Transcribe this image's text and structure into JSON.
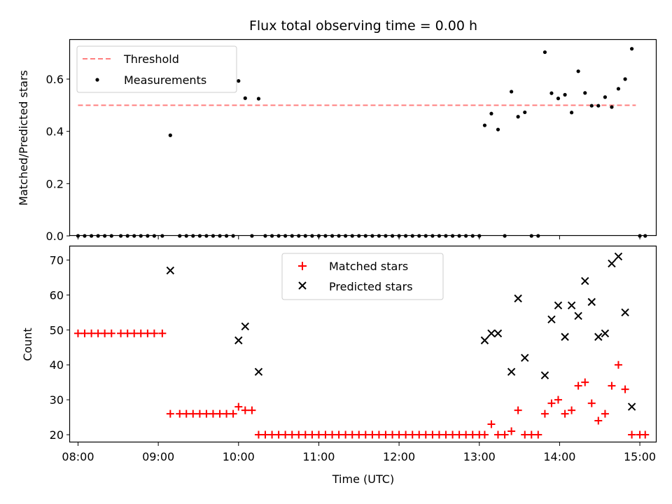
{
  "figure": {
    "title": "Flux total observing time = 0.00 h",
    "xlabel": "Time (UTC)"
  },
  "chart_data": [
    {
      "type": "scatter",
      "panel": "top",
      "ylabel": "Matched/Predicted stars",
      "xlim": [
        7.9,
        15.2
      ],
      "ylim": [
        0,
        0.75
      ],
      "yticks": [
        0.0,
        0.2,
        0.4,
        0.6
      ],
      "ytick_labels": [
        "0.0",
        "0.2",
        "0.4",
        "0.6"
      ],
      "legend": "upper-left",
      "threshold": {
        "name": "Threshold",
        "value": 0.5,
        "x_range": [
          8.0,
          14.95
        ],
        "color": "#ff7f7f",
        "style": "dashed"
      },
      "series": [
        {
          "name": "Measurements",
          "color": "#000000",
          "marker": "dot",
          "points": [
            [
              8.0,
              0
            ],
            [
              8.083,
              0
            ],
            [
              8.167,
              0
            ],
            [
              8.25,
              0
            ],
            [
              8.333,
              0
            ],
            [
              8.417,
              0
            ],
            [
              8.533,
              0
            ],
            [
              8.617,
              0
            ],
            [
              8.7,
              0
            ],
            [
              8.783,
              0
            ],
            [
              8.867,
              0
            ],
            [
              8.95,
              0
            ],
            [
              9.05,
              0
            ],
            [
              9.15,
              0.385
            ],
            [
              9.267,
              0
            ],
            [
              9.35,
              0
            ],
            [
              9.433,
              0
            ],
            [
              9.517,
              0
            ],
            [
              9.6,
              0
            ],
            [
              9.683,
              0
            ],
            [
              9.767,
              0
            ],
            [
              9.85,
              0
            ],
            [
              9.933,
              0
            ],
            [
              10.0,
              0.593
            ],
            [
              10.083,
              0.527
            ],
            [
              10.167,
              0
            ],
            [
              10.25,
              0.525
            ],
            [
              10.333,
              0
            ],
            [
              10.417,
              0
            ],
            [
              10.5,
              0
            ],
            [
              10.583,
              0
            ],
            [
              10.667,
              0
            ],
            [
              10.75,
              0
            ],
            [
              10.833,
              0
            ],
            [
              10.917,
              0
            ],
            [
              11.0,
              0
            ],
            [
              11.083,
              0
            ],
            [
              11.167,
              0
            ],
            [
              11.25,
              0
            ],
            [
              11.333,
              0
            ],
            [
              11.417,
              0
            ],
            [
              11.5,
              0
            ],
            [
              11.583,
              0
            ],
            [
              11.667,
              0
            ],
            [
              11.75,
              0
            ],
            [
              11.833,
              0
            ],
            [
              11.917,
              0
            ],
            [
              12.0,
              0
            ],
            [
              12.083,
              0
            ],
            [
              12.167,
              0
            ],
            [
              12.25,
              0
            ],
            [
              12.333,
              0
            ],
            [
              12.417,
              0
            ],
            [
              12.5,
              0
            ],
            [
              12.583,
              0
            ],
            [
              12.667,
              0
            ],
            [
              12.75,
              0
            ],
            [
              12.833,
              0
            ],
            [
              12.917,
              0
            ],
            [
              13.0,
              0
            ],
            [
              13.067,
              0.423
            ],
            [
              13.15,
              0.468
            ],
            [
              13.233,
              0.407
            ],
            [
              13.317,
              0
            ],
            [
              13.4,
              0.552
            ],
            [
              13.483,
              0.456
            ],
            [
              13.567,
              0.473
            ],
            [
              13.65,
              0
            ],
            [
              13.733,
              0
            ],
            [
              13.817,
              0.703
            ],
            [
              13.9,
              0.546
            ],
            [
              13.983,
              0.526
            ],
            [
              14.067,
              0.54
            ],
            [
              14.15,
              0.472
            ],
            [
              14.233,
              0.63
            ],
            [
              14.317,
              0.547
            ],
            [
              14.4,
              0.498
            ],
            [
              14.483,
              0.498
            ],
            [
              14.567,
              0.531
            ],
            [
              14.65,
              0.493
            ],
            [
              14.733,
              0.563
            ],
            [
              14.817,
              0.6
            ],
            [
              14.9,
              0.716
            ],
            [
              15.0,
              0
            ],
            [
              15.067,
              0
            ]
          ]
        }
      ]
    },
    {
      "type": "scatter",
      "panel": "bottom",
      "ylabel": "Count",
      "xlim": [
        7.9,
        15.2
      ],
      "ylim": [
        17.8,
        73.9
      ],
      "yticks": [
        20,
        30,
        40,
        50,
        60,
        70
      ],
      "ytick_labels": [
        "20",
        "30",
        "40",
        "50",
        "60",
        "70"
      ],
      "xticks": [
        8,
        9,
        10,
        11,
        12,
        13,
        14,
        15
      ],
      "xtick_labels": [
        "08:00",
        "09:00",
        "10:00",
        "11:00",
        "12:00",
        "13:00",
        "14:00",
        "15:00"
      ],
      "legend": "upper-center",
      "series": [
        {
          "name": "Matched stars",
          "color": "#ff0000",
          "marker": "plus",
          "points": [
            [
              8.0,
              49
            ],
            [
              8.083,
              49
            ],
            [
              8.167,
              49
            ],
            [
              8.25,
              49
            ],
            [
              8.333,
              49
            ],
            [
              8.417,
              49
            ],
            [
              8.533,
              49
            ],
            [
              8.617,
              49
            ],
            [
              8.7,
              49
            ],
            [
              8.783,
              49
            ],
            [
              8.867,
              49
            ],
            [
              8.95,
              49
            ],
            [
              9.05,
              49
            ],
            [
              9.15,
              26
            ],
            [
              9.267,
              26
            ],
            [
              9.35,
              26
            ],
            [
              9.433,
              26
            ],
            [
              9.517,
              26
            ],
            [
              9.6,
              26
            ],
            [
              9.683,
              26
            ],
            [
              9.767,
              26
            ],
            [
              9.85,
              26
            ],
            [
              9.933,
              26
            ],
            [
              10.0,
              28
            ],
            [
              10.083,
              27
            ],
            [
              10.167,
              27
            ],
            [
              10.25,
              20
            ],
            [
              10.333,
              20
            ],
            [
              10.417,
              20
            ],
            [
              10.5,
              20
            ],
            [
              10.583,
              20
            ],
            [
              10.667,
              20
            ],
            [
              10.75,
              20
            ],
            [
              10.833,
              20
            ],
            [
              10.917,
              20
            ],
            [
              11.0,
              20
            ],
            [
              11.083,
              20
            ],
            [
              11.167,
              20
            ],
            [
              11.25,
              20
            ],
            [
              11.333,
              20
            ],
            [
              11.417,
              20
            ],
            [
              11.5,
              20
            ],
            [
              11.583,
              20
            ],
            [
              11.667,
              20
            ],
            [
              11.75,
              20
            ],
            [
              11.833,
              20
            ],
            [
              11.917,
              20
            ],
            [
              12.0,
              20
            ],
            [
              12.083,
              20
            ],
            [
              12.167,
              20
            ],
            [
              12.25,
              20
            ],
            [
              12.333,
              20
            ],
            [
              12.417,
              20
            ],
            [
              12.5,
              20
            ],
            [
              12.583,
              20
            ],
            [
              12.667,
              20
            ],
            [
              12.75,
              20
            ],
            [
              12.833,
              20
            ],
            [
              12.917,
              20
            ],
            [
              13.0,
              20
            ],
            [
              13.067,
              20
            ],
            [
              13.15,
              23
            ],
            [
              13.233,
              20
            ],
            [
              13.317,
              20
            ],
            [
              13.4,
              21
            ],
            [
              13.483,
              27
            ],
            [
              13.567,
              20
            ],
            [
              13.65,
              20
            ],
            [
              13.733,
              20
            ],
            [
              13.817,
              26
            ],
            [
              13.9,
              29
            ],
            [
              13.983,
              30
            ],
            [
              14.067,
              26
            ],
            [
              14.15,
              27
            ],
            [
              14.233,
              34
            ],
            [
              14.317,
              35
            ],
            [
              14.4,
              29
            ],
            [
              14.483,
              24
            ],
            [
              14.567,
              26
            ],
            [
              14.65,
              34
            ],
            [
              14.733,
              40
            ],
            [
              14.817,
              33
            ],
            [
              14.9,
              20
            ],
            [
              15.0,
              20
            ],
            [
              15.067,
              20
            ]
          ]
        },
        {
          "name": "Predicted stars",
          "color": "#000000",
          "marker": "x",
          "points": [
            [
              9.15,
              67
            ],
            [
              10.0,
              47
            ],
            [
              10.083,
              51
            ],
            [
              10.25,
              38
            ],
            [
              13.067,
              47
            ],
            [
              13.15,
              49
            ],
            [
              13.233,
              49
            ],
            [
              13.4,
              38
            ],
            [
              13.483,
              59
            ],
            [
              13.567,
              42
            ],
            [
              13.817,
              37
            ],
            [
              13.9,
              53
            ],
            [
              13.983,
              57
            ],
            [
              14.067,
              48
            ],
            [
              14.15,
              57
            ],
            [
              14.233,
              54
            ],
            [
              14.317,
              64
            ],
            [
              14.4,
              58
            ],
            [
              14.483,
              48
            ],
            [
              14.567,
              49
            ],
            [
              14.65,
              69
            ],
            [
              14.733,
              71
            ],
            [
              14.817,
              55
            ],
            [
              14.9,
              28
            ]
          ]
        }
      ]
    }
  ]
}
